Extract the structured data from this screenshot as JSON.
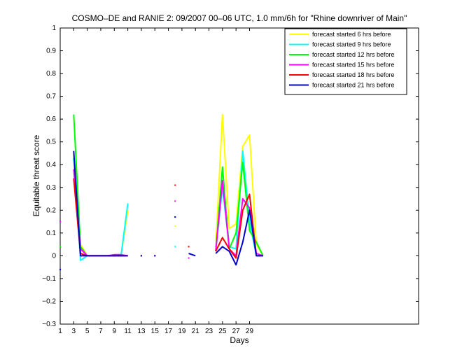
{
  "chart_data": {
    "type": "line",
    "title": "COSMO–DE and RANIE 2: 09/2007 00–06 UTC, 1.0 mm/6h for \"Rhine downriver of Main\"",
    "xlabel": "Days",
    "ylabel": "Equitable threat score",
    "xlim": [
      1,
      54
    ],
    "ylim": [
      -0.3,
      1
    ],
    "xticks": [
      1,
      3,
      5,
      7,
      9,
      11,
      13,
      15,
      17,
      19,
      21,
      23,
      25,
      27,
      29
    ],
    "yticks": [
      -0.3,
      -0.2,
      -0.1,
      0,
      0.1,
      0.2,
      0.3,
      0.4,
      0.5,
      0.6,
      0.7,
      0.8,
      0.9,
      1
    ],
    "ytick_labels": [
      "−0.3",
      "−0.2",
      "−0.1",
      "0",
      "0.1",
      "0.2",
      "0.3",
      "0.4",
      "0.5",
      "0.6",
      "0.7",
      "0.8",
      "0.9",
      "1"
    ],
    "grid": false,
    "legend_position": "top-right",
    "series": [
      {
        "name": "forecast started 6 hrs before",
        "color": "#ffff00",
        "x": [
          1,
          3,
          4,
          5,
          6,
          7,
          8,
          9,
          10,
          11,
          13,
          15,
          18,
          20,
          21,
          24,
          25,
          26,
          27,
          28,
          29,
          30,
          31
        ],
        "y": [
          null,
          0.45,
          0.05,
          0.0,
          0.0,
          0.0,
          0.0,
          0.0,
          0.0,
          0.2,
          0.0,
          0.0,
          0.13,
          null,
          null,
          0.04,
          0.62,
          0.12,
          0.14,
          0.48,
          0.53,
          0.05,
          0.0
        ]
      },
      {
        "name": "forecast started 9 hrs before",
        "color": "#00ffff",
        "x": [
          1,
          3,
          4,
          5,
          6,
          7,
          8,
          9,
          10,
          11,
          13,
          15,
          18,
          20,
          21,
          24,
          25,
          26,
          27,
          28,
          29,
          30,
          31
        ],
        "y": [
          null,
          0.43,
          -0.02,
          0.0,
          0.0,
          0.0,
          0.0,
          0.0,
          0.0,
          0.23,
          0.0,
          0.0,
          0.04,
          null,
          null,
          0.02,
          0.3,
          0.04,
          0.03,
          0.46,
          0.15,
          0.0,
          0.0
        ]
      },
      {
        "name": "forecast started 12 hrs before",
        "color": "#00ff00",
        "x": [
          1,
          3,
          4,
          5,
          6,
          7,
          8,
          9,
          10,
          11,
          13,
          15,
          18,
          20,
          21,
          24,
          25,
          26,
          27,
          28,
          29,
          30,
          31
        ],
        "y": [
          0.04,
          0.62,
          0.04,
          0.0,
          0.0,
          0.0,
          0.0,
          0.0,
          0.0,
          0.0,
          0.0,
          0.0,
          0.17,
          0.04,
          null,
          0.02,
          0.39,
          0.03,
          0.1,
          0.41,
          0.11,
          0.06,
          0.0
        ]
      },
      {
        "name": "forecast started 15 hrs before",
        "color": "#ff00ff",
        "x": [
          1,
          3,
          4,
          5,
          6,
          7,
          8,
          9,
          10,
          11,
          13,
          15,
          18,
          20,
          21,
          24,
          25,
          26,
          27,
          28,
          29,
          30,
          31
        ],
        "y": [
          0.15,
          0.38,
          0.03,
          0.0,
          0.0,
          0.0,
          0.0,
          0.005,
          0.005,
          0.0,
          0.0,
          0.0,
          0.24,
          -0.01,
          null,
          0.02,
          0.33,
          0.03,
          0.0,
          0.25,
          0.21,
          0.01,
          0.0
        ]
      },
      {
        "name": "forecast started 18 hrs before",
        "color": "#ff0000",
        "x": [
          1,
          3,
          4,
          5,
          6,
          7,
          8,
          9,
          10,
          11,
          13,
          15,
          18,
          20,
          21,
          24,
          25,
          26,
          27,
          28,
          29,
          30,
          31
        ],
        "y": [
          null,
          0.34,
          0.01,
          0.0,
          0.0,
          0.0,
          0.0,
          0.0,
          0.0,
          0.0,
          0.0,
          0.0,
          0.31,
          0.04,
          null,
          0.02,
          0.08,
          0.03,
          -0.01,
          0.2,
          0.27,
          0.0,
          0.0
        ]
      },
      {
        "name": "forecast started 21 hrs before",
        "color": "#0000cc",
        "x": [
          1,
          3,
          4,
          5,
          6,
          7,
          8,
          9,
          10,
          11,
          13,
          15,
          18,
          20,
          21,
          24,
          25,
          26,
          27,
          28,
          29,
          30,
          31
        ],
        "y": [
          -0.06,
          0.46,
          0.0,
          0.0,
          0.0,
          0.0,
          0.0,
          0.0,
          0.0,
          0.0,
          0.0,
          0.0,
          0.17,
          0.01,
          0.0,
          0.01,
          0.04,
          0.02,
          -0.04,
          0.06,
          0.2,
          0.0,
          0.0
        ]
      }
    ]
  }
}
